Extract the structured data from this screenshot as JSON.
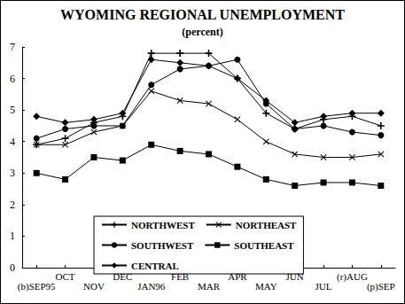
{
  "chart_data": {
    "type": "line",
    "title": "WYOMING REGIONAL UNEMPLOYMENT",
    "subtitle": "(percent)",
    "categories": [
      "(b)SEP95",
      "OCT",
      "NOV",
      "DEC",
      "JAN96",
      "FEB",
      "MAR",
      "APR",
      "MAY",
      "JUN",
      "JUL",
      "(r)AUG",
      "(p)SEP"
    ],
    "series": [
      {
        "name": "NORTHWEST",
        "color": "#000000",
        "marker": "plus",
        "values": [
          3.9,
          4.1,
          4.6,
          4.8,
          6.8,
          6.8,
          6.8,
          6.0,
          4.9,
          4.4,
          4.7,
          4.8,
          4.5
        ]
      },
      {
        "name": "NORTHEAST",
        "color": "#000000",
        "marker": "x",
        "values": [
          3.9,
          3.9,
          4.3,
          4.5,
          5.6,
          5.3,
          5.2,
          4.7,
          4.0,
          3.6,
          3.5,
          3.5,
          3.6
        ]
      },
      {
        "name": "SOUTHWEST",
        "color": "#000000",
        "marker": "circle",
        "values": [
          4.1,
          4.4,
          4.5,
          4.5,
          5.8,
          6.3,
          6.4,
          6.6,
          5.2,
          4.4,
          4.5,
          4.3,
          4.2
        ]
      },
      {
        "name": "SOUTHEAST",
        "color": "#000000",
        "marker": "square",
        "values": [
          3.0,
          2.8,
          3.5,
          3.4,
          3.9,
          3.7,
          3.6,
          3.2,
          2.8,
          2.6,
          2.7,
          2.7,
          2.6
        ]
      },
      {
        "name": "CENTRAL",
        "color": "#000000",
        "marker": "diamond",
        "values": [
          4.8,
          4.6,
          4.7,
          4.9,
          6.6,
          6.5,
          6.4,
          6.0,
          5.3,
          4.6,
          4.8,
          4.9,
          4.9
        ]
      }
    ],
    "ylim": [
      0,
      7
    ],
    "yticks": [
      0,
      1,
      2,
      3,
      4,
      5,
      6,
      7
    ],
    "grid": false,
    "legend": "bottom"
  }
}
